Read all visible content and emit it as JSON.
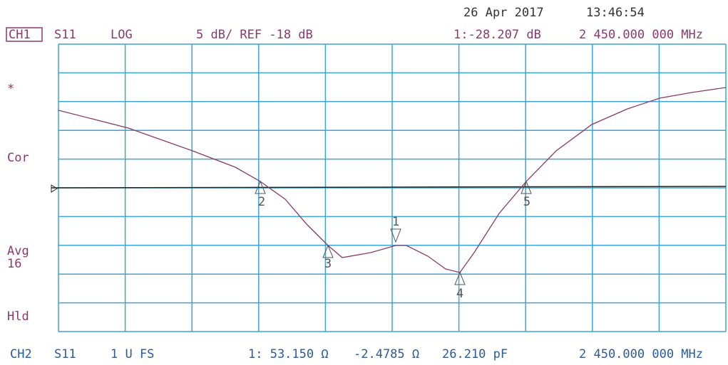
{
  "header": {
    "date": "26 Apr 2017",
    "time": "13:46:54"
  },
  "ch1": {
    "channel": "CH1",
    "parameter": "S11",
    "format": "LOG",
    "scale": "5 dB/ REF -18 dB",
    "marker": "1:-28.207 dB",
    "frequency": "2 450.000 000 MHz"
  },
  "side_labels": [
    "*",
    "Cor",
    "Avg",
    "16",
    "Hld"
  ],
  "markers": [
    "1",
    "2",
    "3",
    "4",
    "5"
  ],
  "ch2": {
    "channel": "CH2",
    "parameter": "S11",
    "format": "1 U FS",
    "resistance": "1: 53.150 Ω",
    "reactance": "-2.4785 Ω",
    "capacitance": "26.210 pF",
    "frequency": "2 450.000 000 MHz"
  }
}
